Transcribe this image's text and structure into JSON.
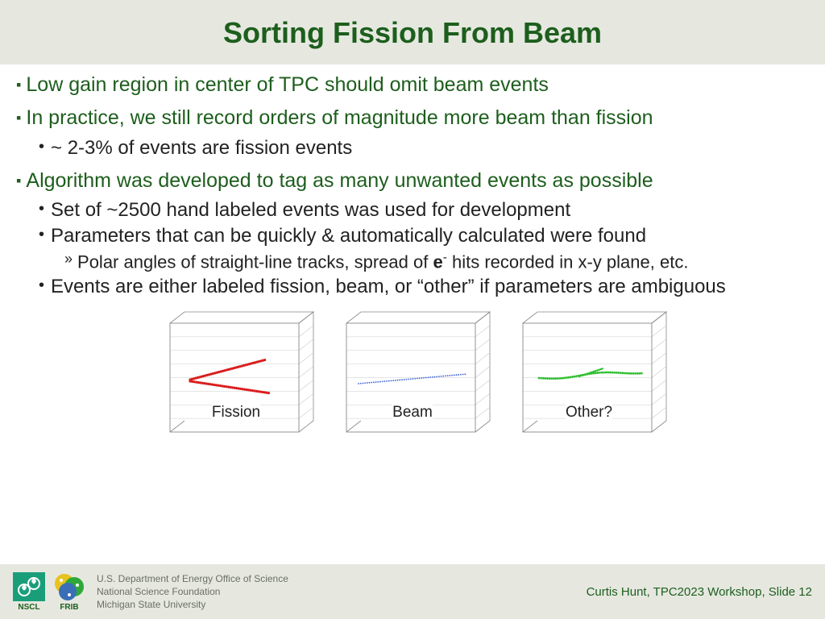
{
  "title": "Sorting Fission From Beam",
  "bullets": {
    "b1": "Low gain region in center of TPC should omit beam events",
    "b2": "In practice, we still record orders of magnitude more beam than fission",
    "b2a": "~ 2-3% of events are fission events",
    "b3": "Algorithm was developed to tag as many unwanted events as possible",
    "b3a": "Set of ~2500 hand labeled events was used for development",
    "b3b": "Parameters that can be quickly & automatically calculated were found",
    "b3b1_pre": "Polar angles of straight-line tracks, spread of ",
    "b3b1_e": "e",
    "b3b1_sup": "-",
    "b3b1_post": " hits recorded in x-y plane, etc.",
    "b3c": "Events are either labeled fission, beam, or “other” if parameters are ambiguous"
  },
  "diagrams": {
    "box_stroke": "#888888",
    "grid_stroke": "#cccccc",
    "items": [
      {
        "label": "Fission",
        "color": "#d81e1e",
        "type": "fission"
      },
      {
        "label": "Beam",
        "color": "#3a5fcd",
        "type": "beam"
      },
      {
        "label": "Other?",
        "color": "#2fbf2f",
        "type": "other"
      }
    ]
  },
  "footer": {
    "nscl_label": "NSCL",
    "frib_label": "FRIB",
    "affil1": "U.S. Department of Energy Office of Science",
    "affil2": "National Science Foundation",
    "affil3": "Michigan State University",
    "slide": "Curtis Hunt, TPC2023 Workshop, Slide 12"
  },
  "colors": {
    "header_bg": "#e6e8e0",
    "title_color": "#1d5e1d",
    "nscl_fill": "#1a9e7a",
    "frib_fill1": "#2fa83a",
    "frib_fill2": "#e8c21e",
    "frib_fill3": "#3a6fb5"
  }
}
